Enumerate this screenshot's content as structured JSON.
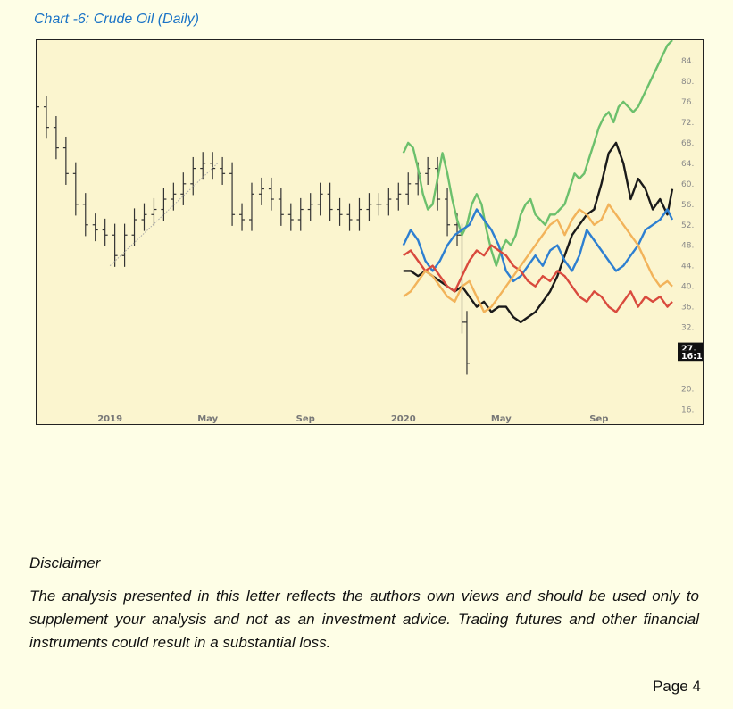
{
  "chart_title": "Chart -6: Crude Oil (Daily)",
  "disclaimer": {
    "title": "Disclaimer",
    "body": "The analysis presented in this letter reflects the authors own views and should be used only to supplement your analysis and not as an investment advice. Trading futures and other financial instruments could result in a substantial loss."
  },
  "page": "Page 4",
  "chart_data": {
    "type": "line",
    "title": "",
    "xlabel": "",
    "ylabel": "",
    "ylim": [
      14,
      88
    ],
    "x_ticks": [
      {
        "label": "2019",
        "t": 3
      },
      {
        "label": "May",
        "t": 7
      },
      {
        "label": "Sep",
        "t": 11
      },
      {
        "label": "2020",
        "t": 15
      },
      {
        "label": "May",
        "t": 19
      },
      {
        "label": "Sep",
        "t": 23
      }
    ],
    "xlim": [
      0,
      26
    ],
    "y_ticks": [
      "84.",
      "80.",
      "76.",
      "72.",
      "68.",
      "64.",
      "60.",
      "56.",
      "52.",
      "48.",
      "44.",
      "40.",
      "36.",
      "32.",
      "20.",
      "16."
    ],
    "y_tick_values": [
      84,
      80,
      76,
      72,
      68,
      64,
      60,
      56,
      52,
      48,
      44,
      40,
      36,
      32,
      20,
      16
    ],
    "price_labels": [
      {
        "text": "27.",
        "value": 28
      },
      {
        "text": "16:1",
        "value": 26.5
      }
    ],
    "ohlc": {
      "t": [
        0,
        0.4,
        0.8,
        1.2,
        1.6,
        2.0,
        2.4,
        2.8,
        3.2,
        3.6,
        4.0,
        4.4,
        4.8,
        5.2,
        5.6,
        6.0,
        6.4,
        6.8,
        7.2,
        7.6,
        8.0,
        8.4,
        8.8,
        9.2,
        9.6,
        10.0,
        10.4,
        10.8,
        11.2,
        11.6,
        12.0,
        12.4,
        12.8,
        13.2,
        13.6,
        14.0,
        14.4,
        14.8,
        15.2,
        15.6,
        16.0,
        16.4,
        16.8,
        17.2,
        17.4,
        17.6
      ],
      "close": [
        75,
        71,
        67,
        62,
        56,
        52,
        51,
        50,
        46,
        50,
        53,
        54,
        55,
        57,
        58,
        60,
        63,
        64,
        63,
        62,
        54,
        53,
        58,
        59,
        57,
        54,
        53,
        55,
        56,
        58,
        55,
        54,
        53,
        55,
        56,
        56,
        57,
        58,
        60,
        62,
        63,
        57,
        52,
        50,
        33,
        25
      ]
    },
    "series": [
      {
        "color": "#6cc06c",
        "x": [
          15,
          15.2,
          15.4,
          15.6,
          15.8,
          16.0,
          16.2,
          16.4,
          16.6,
          16.8,
          17.0,
          17.2,
          17.4,
          17.6,
          17.8,
          18.0,
          18.2,
          18.4,
          18.6,
          18.8,
          19.0,
          19.2,
          19.4,
          19.6,
          19.8,
          20.0,
          20.2,
          20.4,
          20.6,
          20.8,
          21.0,
          21.2,
          21.4,
          21.6,
          21.8,
          22.0,
          22.2,
          22.4,
          22.6,
          22.8,
          23.0,
          23.2,
          23.4,
          23.6,
          23.8,
          24.0,
          24.2,
          24.4,
          24.6,
          24.8,
          25.0,
          25.2,
          25.4,
          25.6,
          25.8,
          26.0
        ],
        "values": [
          66,
          68,
          67,
          63,
          58,
          55,
          56,
          61,
          66,
          62,
          57,
          53,
          50,
          52,
          56,
          58,
          56,
          51,
          47,
          44,
          47,
          49,
          48,
          50,
          54,
          56,
          57,
          54,
          53,
          52,
          54,
          54,
          55,
          56,
          59,
          62,
          61,
          62,
          65,
          68,
          71,
          73,
          74,
          72,
          75,
          76,
          75,
          74,
          75,
          77,
          79,
          81,
          83,
          85,
          87,
          88
        ]
      },
      {
        "color": "#1a1a1a",
        "x": [
          15,
          15.3,
          15.6,
          15.9,
          16.2,
          16.5,
          16.8,
          17.1,
          17.4,
          17.7,
          18.0,
          18.3,
          18.6,
          18.9,
          19.2,
          19.5,
          19.8,
          20.1,
          20.4,
          20.7,
          21.0,
          21.3,
          21.6,
          21.9,
          22.2,
          22.5,
          22.8,
          23.1,
          23.4,
          23.7,
          24.0,
          24.3,
          24.6,
          24.9,
          25.2,
          25.5,
          25.8,
          26.0
        ],
        "values": [
          43,
          43,
          42,
          43,
          42,
          41,
          40,
          39,
          40,
          38,
          36,
          37,
          35,
          36,
          36,
          34,
          33,
          34,
          35,
          37,
          39,
          42,
          46,
          50,
          52,
          54,
          55,
          60,
          66,
          68,
          64,
          57,
          61,
          59,
          55,
          57,
          54,
          59
        ]
      },
      {
        "color": "#2d7fd1",
        "x": [
          15,
          15.3,
          15.6,
          15.9,
          16.2,
          16.5,
          16.8,
          17.1,
          17.4,
          17.7,
          18.0,
          18.3,
          18.6,
          18.9,
          19.2,
          19.5,
          19.8,
          20.1,
          20.4,
          20.7,
          21.0,
          21.3,
          21.6,
          21.9,
          22.2,
          22.5,
          22.8,
          23.1,
          23.4,
          23.7,
          24.0,
          24.3,
          24.6,
          24.9,
          25.2,
          25.5,
          25.8,
          26.0
        ],
        "values": [
          48,
          51,
          49,
          45,
          43,
          45,
          48,
          50,
          51,
          52,
          55,
          53,
          51,
          48,
          43,
          41,
          42,
          44,
          46,
          44,
          47,
          48,
          45,
          43,
          46,
          51,
          49,
          47,
          45,
          43,
          44,
          46,
          48,
          51,
          52,
          53,
          55,
          53
        ]
      },
      {
        "color": "#d94a3d",
        "x": [
          15,
          15.3,
          15.6,
          15.9,
          16.2,
          16.5,
          16.8,
          17.1,
          17.4,
          17.7,
          18.0,
          18.3,
          18.6,
          18.9,
          19.2,
          19.5,
          19.8,
          20.1,
          20.4,
          20.7,
          21.0,
          21.3,
          21.6,
          21.9,
          22.2,
          22.5,
          22.8,
          23.1,
          23.4,
          23.7,
          24.0,
          24.3,
          24.6,
          24.9,
          25.2,
          25.5,
          25.8,
          26.0
        ],
        "values": [
          46,
          47,
          45,
          43,
          44,
          42,
          40,
          39,
          42,
          45,
          47,
          46,
          48,
          47,
          46,
          44,
          43,
          41,
          40,
          42,
          41,
          43,
          42,
          40,
          38,
          37,
          39,
          38,
          36,
          35,
          37,
          39,
          36,
          38,
          37,
          38,
          36,
          37
        ]
      },
      {
        "color": "#f2b35a",
        "x": [
          15,
          15.3,
          15.6,
          15.9,
          16.2,
          16.5,
          16.8,
          17.1,
          17.4,
          17.7,
          18.0,
          18.3,
          18.6,
          18.9,
          19.2,
          19.5,
          19.8,
          20.1,
          20.4,
          20.7,
          21.0,
          21.3,
          21.6,
          21.9,
          22.2,
          22.5,
          22.8,
          23.1,
          23.4,
          23.7,
          24.0,
          24.3,
          24.6,
          24.9,
          25.2,
          25.5,
          25.8,
          26.0
        ],
        "values": [
          38,
          39,
          41,
          43,
          42,
          40,
          38,
          37,
          40,
          41,
          38,
          35,
          36,
          38,
          40,
          42,
          44,
          46,
          48,
          50,
          52,
          53,
          50,
          53,
          55,
          54,
          52,
          53,
          56,
          54,
          52,
          50,
          48,
          45,
          42,
          40,
          41,
          40
        ]
      }
    ]
  }
}
